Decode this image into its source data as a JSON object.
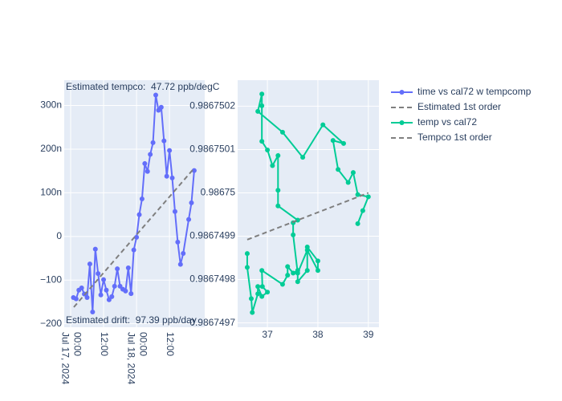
{
  "chart_data": [
    {
      "type": "line",
      "xtype": "date",
      "annotations": [
        "Estimated tempco:  47.72 ppb/degC",
        "Estimated drift:  97.39 ppb/day"
      ],
      "xlim": [
        "2024-07-16T21:40",
        "2024-07-19T00:50"
      ],
      "xticks": [
        {
          "value": "2024-07-17T00:00",
          "label": "00:00\nJul 17, 2024"
        },
        {
          "value": "2024-07-17T12:00",
          "label": "12:00"
        },
        {
          "value": "2024-07-18T00:00",
          "label": "00:00\nJul 18, 2024"
        },
        {
          "value": "2024-07-18T12:00",
          "label": "12:00"
        }
      ],
      "ylim": [
        -208,
        358
      ],
      "yticks": [
        {
          "value": -200,
          "label": "−200"
        },
        {
          "value": -100,
          "label": "−100"
        },
        0,
        {
          "value": 100,
          "label": "100n"
        },
        {
          "value": 200,
          "label": "200n"
        },
        {
          "value": 300,
          "label": "300n"
        }
      ],
      "grid": true,
      "series": [
        {
          "name": "time vs cal72 w tempcomp",
          "color": "#636efa",
          "dash": false,
          "markers": true,
          "x": [
            "2024-07-17T01:00",
            "2024-07-17T02:00",
            "2024-07-17T03:00",
            "2024-07-17T04:00",
            "2024-07-17T05:00",
            "2024-07-17T06:00",
            "2024-07-17T07:00",
            "2024-07-17T08:00",
            "2024-07-17T09:00",
            "2024-07-17T10:00",
            "2024-07-17T11:00",
            "2024-07-17T12:00",
            "2024-07-17T13:00",
            "2024-07-17T14:00",
            "2024-07-17T15:00",
            "2024-07-17T16:00",
            "2024-07-17T17:00",
            "2024-07-17T18:00",
            "2024-07-17T19:00",
            "2024-07-17T20:00",
            "2024-07-17T21:00",
            "2024-07-17T22:00",
            "2024-07-17T23:00",
            "2024-07-18T00:00",
            "2024-07-18T01:00",
            "2024-07-18T02:00",
            "2024-07-18T03:00",
            "2024-07-18T04:00",
            "2024-07-18T05:00",
            "2024-07-18T06:00",
            "2024-07-18T07:00",
            "2024-07-18T08:00",
            "2024-07-18T09:00",
            "2024-07-18T10:00",
            "2024-07-18T11:00",
            "2024-07-18T12:00",
            "2024-07-18T13:00",
            "2024-07-18T14:00",
            "2024-07-18T15:00",
            "2024-07-18T16:00",
            "2024-07-18T17:00",
            "2024-07-18T19:00",
            "2024-07-18T20:00",
            "2024-07-18T21:00"
          ],
          "values": [
            -140,
            -143,
            -123,
            -118,
            -132,
            -140,
            -63,
            -173,
            -29,
            -85,
            -134,
            -99,
            -123,
            -145,
            -138,
            -114,
            -74,
            -114,
            -121,
            -125,
            -72,
            -131,
            -31,
            -2,
            50,
            86,
            167,
            149,
            188,
            215,
            324,
            289,
            296,
            219,
            138,
            197,
            134,
            57,
            -13,
            -64,
            -39,
            39,
            77,
            151
          ]
        },
        {
          "name": "Estimated 1st order",
          "color": "#7f7f7f",
          "dash": true,
          "markers": false,
          "x": [
            "2024-07-17T01:10",
            "2024-07-18T20:40"
          ],
          "values": [
            -162,
            154
          ]
        }
      ]
    },
    {
      "type": "line",
      "xtype": "number",
      "xlim": [
        36.41,
        39.21
      ],
      "xticks": [
        37,
        38,
        39
      ],
      "ylim": [
        0.98674969,
        0.98675026
      ],
      "yticks": [
        0.9867497,
        0.9867498,
        0.9867499,
        0.98675,
        0.9867501,
        0.9867502
      ],
      "grid": true,
      "series": [
        {
          "name": "temp vs cal72",
          "color": "#00cc96",
          "dash": false,
          "markers": true,
          "x": [
            36.6,
            36.6,
            36.68,
            36.7,
            36.81,
            36.81,
            36.89,
            37.0,
            36.9,
            36.89,
            37.3,
            37.4,
            37.4,
            37.51,
            37.6,
            37.6,
            37.79,
            37.79,
            38.0,
            38.0,
            37.79,
            37.6,
            37.51,
            37.51,
            37.6,
            37.21,
            37.21,
            37.21,
            37.1,
            37.0,
            36.89,
            36.89,
            36.89,
            36.81,
            37.3,
            37.7,
            38.1,
            38.51,
            38.3,
            38.4,
            38.6,
            38.7,
            38.79,
            39.0,
            38.89,
            38.79
          ],
          "values": [
            0.98674986,
            0.986749828,
            0.986749756,
            0.986749724,
            0.986749767,
            0.986749784,
            0.986749761,
            0.986749771,
            0.986749784,
            0.986749821,
            0.986749789,
            0.98674981,
            0.98674983,
            0.986749815,
            0.986749821,
            0.986749795,
            0.986749821,
            0.986749875,
            0.986749843,
            0.986749821,
            0.986749868,
            0.986749815,
            0.986749903,
            0.986749931,
            0.986749937,
            0.98674997,
            0.986750006,
            0.986750086,
            0.986750063,
            0.986750099,
            0.986750119,
            0.986750201,
            0.986750228,
            0.986750188,
            0.98675014,
            0.986750082,
            0.986750157,
            0.986750114,
            0.986750121,
            0.986750054,
            0.986750024,
            0.986750047,
            0.986749996,
            0.986749991,
            0.986749959,
            0.986749929
          ]
        },
        {
          "name": "Tempco 1st order",
          "color": "#7f7f7f",
          "dash": true,
          "markers": false,
          "x": [
            36.6,
            39.0
          ],
          "values": [
            0.986749892,
            0.98675
          ]
        }
      ]
    }
  ]
}
